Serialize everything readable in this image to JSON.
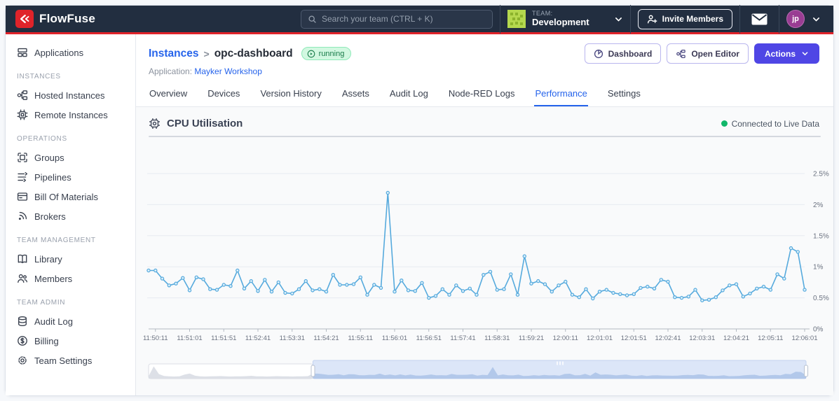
{
  "colors": {
    "brand_red": "#e0232a",
    "navbar_bg": "#222e40",
    "accent_indigo": "#4f46e5",
    "link_blue": "#2563eb",
    "line_blue": "#56aadd",
    "live_green": "#12b76a"
  },
  "navbar": {
    "brand": "FlowFuse",
    "search_placeholder": "Search your team (CTRL + K)",
    "team_kicker": "TEAM:",
    "team_name": "Development",
    "invite_button": "Invite Members",
    "avatar_initials": "jp"
  },
  "sidebar": {
    "sections": [
      {
        "header": "",
        "items": [
          {
            "label": "Applications",
            "icon": "applications-icon"
          }
        ]
      },
      {
        "header": "INSTANCES",
        "items": [
          {
            "label": "Hosted Instances",
            "icon": "hosted-instances-icon"
          },
          {
            "label": "Remote Instances",
            "icon": "remote-instances-icon"
          }
        ]
      },
      {
        "header": "OPERATIONS",
        "items": [
          {
            "label": "Groups",
            "icon": "groups-icon"
          },
          {
            "label": "Pipelines",
            "icon": "pipelines-icon"
          },
          {
            "label": "Bill Of Materials",
            "icon": "bill-of-materials-icon"
          },
          {
            "label": "Brokers",
            "icon": "brokers-icon"
          }
        ]
      },
      {
        "header": "TEAM MANAGEMENT",
        "items": [
          {
            "label": "Library",
            "icon": "library-icon"
          },
          {
            "label": "Members",
            "icon": "members-icon"
          }
        ]
      },
      {
        "header": "TEAM ADMIN",
        "items": [
          {
            "label": "Audit Log",
            "icon": "audit-log-icon"
          },
          {
            "label": "Billing",
            "icon": "billing-icon"
          },
          {
            "label": "Team Settings",
            "icon": "team-settings-icon"
          }
        ]
      }
    ]
  },
  "header": {
    "breadcrumb_root": "Instances",
    "breadcrumb_separator": ">",
    "instance_name": "opc-dashboard",
    "status_badge": "running",
    "application_label": "Application:",
    "application_name": "Mayker Workshop",
    "dashboard_button": "Dashboard",
    "open_editor_button": "Open Editor",
    "actions_button": "Actions"
  },
  "tabs": {
    "items": [
      "Overview",
      "Devices",
      "Version History",
      "Assets",
      "Audit Log",
      "Node-RED Logs",
      "Performance",
      "Settings"
    ],
    "active": "Performance"
  },
  "panel": {
    "title": "CPU Utilisation",
    "live_status": "Connected to Live Data"
  },
  "chart_data": {
    "type": "line",
    "title": "CPU Utilisation",
    "unit": "%",
    "ylim": [
      0,
      2.5
    ],
    "grid": true,
    "legend": false,
    "y_axis_side": "right",
    "y_tick_labels": [
      "0%",
      "0.5%",
      "1%",
      "1.5%",
      "2%",
      "2.5%"
    ],
    "x_tick_labels": [
      "11:50:11",
      "11:51:01",
      "11:51:51",
      "11:52:41",
      "11:53:31",
      "11:54:21",
      "11:55:11",
      "11:56:01",
      "11:56:51",
      "11:57:41",
      "11:58:31",
      "11:59:21",
      "12:00:11",
      "12:01:01",
      "12:01:51",
      "12:02:41",
      "12:03:31",
      "12:04:21",
      "12:05:11",
      "12:06:01"
    ],
    "sample_interval_seconds": 10,
    "values": [
      0.94,
      0.94,
      0.81,
      0.7,
      0.73,
      0.82,
      0.62,
      0.83,
      0.8,
      0.64,
      0.63,
      0.71,
      0.69,
      0.94,
      0.65,
      0.77,
      0.61,
      0.79,
      0.6,
      0.75,
      0.58,
      0.57,
      0.64,
      0.77,
      0.62,
      0.64,
      0.6,
      0.87,
      0.71,
      0.71,
      0.72,
      0.83,
      0.55,
      0.71,
      0.66,
      2.19,
      0.6,
      0.78,
      0.62,
      0.61,
      0.74,
      0.5,
      0.53,
      0.64,
      0.55,
      0.7,
      0.61,
      0.65,
      0.55,
      0.87,
      0.92,
      0.63,
      0.64,
      0.88,
      0.55,
      1.17,
      0.73,
      0.77,
      0.72,
      0.6,
      0.7,
      0.76,
      0.55,
      0.51,
      0.64,
      0.49,
      0.6,
      0.63,
      0.58,
      0.56,
      0.54,
      0.56,
      0.66,
      0.68,
      0.65,
      0.79,
      0.76,
      0.51,
      0.5,
      0.52,
      0.63,
      0.46,
      0.47,
      0.51,
      0.62,
      0.7,
      0.72,
      0.52,
      0.57,
      0.65,
      0.68,
      0.63,
      0.88,
      0.81,
      1.3,
      1.24,
      0.63
    ],
    "minimap": {
      "pre_values": [
        0.45,
        2.3,
        0.85,
        0.5,
        0.42,
        0.4,
        0.44,
        0.75,
        0.95,
        0.55,
        0.42,
        0.4,
        0.42,
        0.45,
        0.48,
        0.42,
        0.4,
        0.44,
        0.42,
        0.46,
        0.52,
        0.44,
        0.42,
        0.4,
        0.44,
        0.46,
        0.42,
        0.44,
        0.4,
        0.42,
        0.44,
        0.46
      ]
    }
  }
}
